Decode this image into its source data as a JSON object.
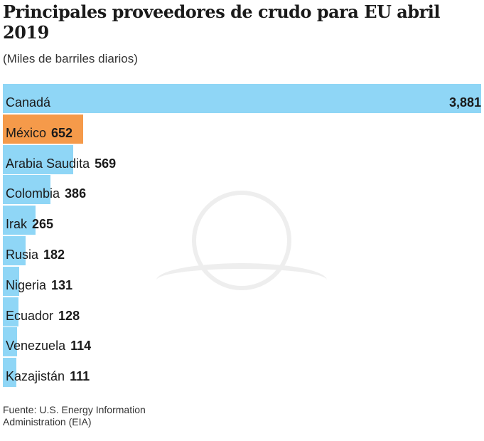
{
  "chart_data": {
    "type": "bar",
    "orientation": "horizontal",
    "title": "Principales proveedores de crudo para EU abril 2019",
    "subtitle": "(Miles de barriles diarios)",
    "categories": [
      "Canadá",
      "México",
      "Arabia Saudita",
      "Colombia",
      "Irak",
      "Rusia",
      "Nigeria",
      "Ecuador",
      "Venezuela",
      "Kazajistán"
    ],
    "values": [
      3881,
      652,
      569,
      386,
      265,
      182,
      131,
      128,
      114,
      111
    ],
    "value_labels": [
      "3,881",
      "652",
      "569",
      "386",
      "265",
      "182",
      "131",
      "128",
      "114",
      "111"
    ],
    "xlim": [
      0,
      3881
    ],
    "grid": false,
    "colors": {
      "default": "#8fd6f6",
      "highlight": "#f59a4a"
    },
    "highlight_category": "México",
    "source": "Fuente: U.S. Energy Information Administration (EIA)"
  }
}
